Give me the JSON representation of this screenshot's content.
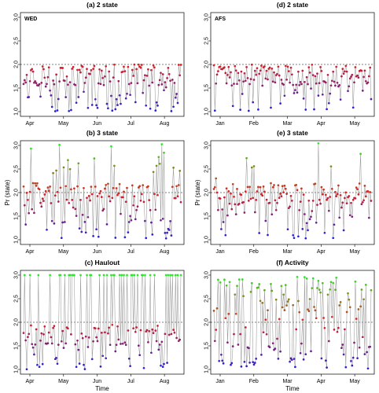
{
  "chart_data": [
    {
      "id": "a",
      "type": "scatter",
      "title": "(a) 2 state",
      "corner_label": "WED",
      "ylim": [
        0.9,
        3.1
      ],
      "yticks": [
        "1.0",
        "1.5",
        "2.0",
        "2.5",
        "3.0"
      ],
      "ref_line": 2.0,
      "xticks": [
        "Apr",
        "May",
        "Jun",
        "Jul",
        "Aug"
      ],
      "ylabel": "",
      "xlabel": "",
      "n_states": 2,
      "pattern": "two-state"
    },
    {
      "id": "d",
      "type": "scatter",
      "title": "(d) 2 state",
      "corner_label": "AFS",
      "ylim": [
        0.9,
        3.1
      ],
      "yticks": [
        "1.0",
        "1.5",
        "2.0",
        "2.5",
        "3.0"
      ],
      "ref_line": 2.0,
      "xticks": [
        "Jan",
        "Feb",
        "Mar",
        "Apr",
        "May"
      ],
      "ylabel": "",
      "xlabel": "",
      "n_states": 2,
      "pattern": "two-state"
    },
    {
      "id": "b",
      "type": "scatter",
      "title": "(b) 3 state",
      "corner_label": "",
      "ylim": [
        0.9,
        3.1
      ],
      "yticks": [
        "1.0",
        "1.5",
        "2.0",
        "2.5",
        "3.0"
      ],
      "ref_line": 2.0,
      "xticks": [
        "Apr",
        "May",
        "Jun",
        "Jul",
        "Aug"
      ],
      "ylabel": "Pr (state)",
      "xlabel": "",
      "n_states": 3,
      "pattern": "three-state"
    },
    {
      "id": "e",
      "type": "scatter",
      "title": "(e) 3 state",
      "corner_label": "",
      "ylim": [
        0.9,
        3.1
      ],
      "yticks": [
        "1.0",
        "1.5",
        "2.0",
        "2.5",
        "3.0"
      ],
      "ref_line": 2.0,
      "xticks": [
        "Jan",
        "Feb",
        "Mar",
        "Apr",
        "May"
      ],
      "ylabel": "Pr (state)",
      "xlabel": "",
      "n_states": 3,
      "pattern": "three-state"
    },
    {
      "id": "c",
      "type": "scatter",
      "title": "(c) Haulout",
      "corner_label": "",
      "ylim": [
        0.9,
        3.1
      ],
      "yticks": [
        "1.0",
        "1.5",
        "2.0",
        "2.5",
        "3.0"
      ],
      "ref_line": 2.0,
      "xticks": [
        "Apr",
        "May",
        "Jun",
        "Jul",
        "Aug"
      ],
      "ylabel": "",
      "xlabel": "Time",
      "n_states": 3,
      "pattern": "haulout"
    },
    {
      "id": "f",
      "type": "scatter",
      "title": "(f) Activity",
      "corner_label": "",
      "ylim": [
        0.9,
        3.1
      ],
      "yticks": [
        "1.0",
        "1.5",
        "2.0",
        "2.5",
        "3.0"
      ],
      "ref_line": 2.0,
      "xticks": [
        "Jan",
        "Feb",
        "Mar",
        "Apr",
        "May"
      ],
      "ylabel": "",
      "xlabel": "Time",
      "n_states": 3,
      "pattern": "activity"
    }
  ],
  "colors": {
    "state1": "#1f1fe0",
    "state2": "#e01f1f",
    "state3": "#22ee22",
    "segment": "#9a9a9a",
    "axis": "#000000"
  }
}
